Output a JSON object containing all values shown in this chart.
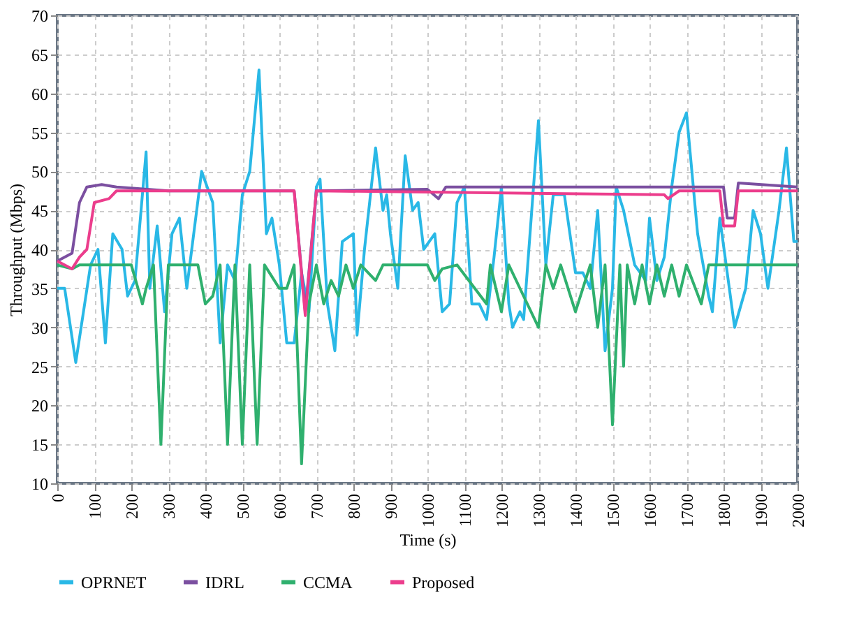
{
  "chart_data": {
    "type": "line",
    "xlabel": "Time (s)",
    "ylabel": "Throughput (Mbps)",
    "xlim": [
      0,
      2000
    ],
    "xticks": [
      0,
      100,
      200,
      300,
      400,
      500,
      600,
      700,
      800,
      900,
      1000,
      1100,
      1200,
      1300,
      1400,
      1500,
      1600,
      1700,
      1800,
      1900,
      2000
    ],
    "ylim": [
      10,
      70
    ],
    "yticks": [
      10,
      15,
      20,
      25,
      30,
      35,
      40,
      45,
      50,
      55,
      60,
      65,
      70
    ],
    "grid": true,
    "legend": "bottom",
    "marker": "none",
    "line_style": "solid",
    "series": [
      {
        "name": "OPRNET",
        "color": "#29b8e6",
        "x": [
          0,
          20,
          50,
          90,
          110,
          130,
          150,
          175,
          190,
          210,
          240,
          250,
          270,
          290,
          310,
          330,
          350,
          390,
          420,
          440,
          460,
          480,
          500,
          520,
          545,
          565,
          580,
          600,
          620,
          640,
          660,
          680,
          700,
          710,
          730,
          750,
          770,
          800,
          810,
          830,
          860,
          880,
          890,
          900,
          920,
          940,
          960,
          975,
          990,
          1020,
          1040,
          1060,
          1080,
          1100,
          1120,
          1140,
          1160,
          1180,
          1200,
          1220,
          1230,
          1250,
          1260,
          1300,
          1320,
          1340,
          1370,
          1400,
          1420,
          1440,
          1460,
          1480,
          1500,
          1510,
          1530,
          1560,
          1590,
          1600,
          1620,
          1640,
          1660,
          1680,
          1700,
          1730,
          1760,
          1770,
          1790,
          1830,
          1860,
          1880,
          1900,
          1920,
          1950,
          1970,
          1990,
          2000
        ],
        "values": [
          35,
          35,
          25.5,
          38,
          40,
          28,
          42,
          40,
          34,
          36,
          52.5,
          35,
          43,
          32,
          42,
          44,
          35,
          50,
          46,
          28,
          38,
          36,
          47,
          50,
          63,
          42,
          44,
          38,
          28,
          28,
          37,
          32,
          48,
          49,
          33,
          27,
          41,
          42,
          29,
          40,
          53,
          45,
          47,
          42,
          35,
          52,
          45,
          46,
          40,
          42,
          32,
          33,
          46,
          48,
          33,
          33,
          31,
          39,
          48,
          33,
          30,
          32,
          31,
          56.5,
          38,
          47,
          47,
          37,
          37,
          35,
          45,
          27,
          35,
          48,
          45,
          38,
          36,
          44,
          36,
          39,
          48,
          55,
          57.5,
          42,
          34,
          32,
          44,
          30,
          35,
          45,
          42,
          35,
          45,
          53,
          41,
          41
        ]
      },
      {
        "name": "IDRL",
        "color": "#7b4fa0",
        "x": [
          0,
          40,
          60,
          80,
          120,
          160,
          300,
          640,
          670,
          700,
          1000,
          1030,
          1050,
          1800,
          1810,
          1830,
          1840,
          2000
        ],
        "values": [
          38.5,
          39.5,
          46,
          48,
          48.3,
          48,
          47.5,
          47.5,
          32,
          47.5,
          47.7,
          46.5,
          48,
          48,
          44,
          44,
          48.5,
          48
        ]
      },
      {
        "name": "CCMA",
        "color": "#2fb06e",
        "x": [
          0,
          40,
          60,
          200,
          230,
          240,
          260,
          280,
          300,
          380,
          400,
          420,
          440,
          460,
          480,
          500,
          520,
          540,
          560,
          600,
          620,
          640,
          660,
          680,
          700,
          720,
          740,
          760,
          780,
          800,
          820,
          860,
          880,
          1000,
          1020,
          1040,
          1080,
          1160,
          1170,
          1200,
          1220,
          1260,
          1300,
          1320,
          1340,
          1360,
          1400,
          1420,
          1440,
          1460,
          1480,
          1500,
          1520,
          1530,
          1540,
          1560,
          1580,
          1600,
          1620,
          1640,
          1660,
          1680,
          1700,
          1740,
          1760,
          1800,
          2000
        ],
        "values": [
          38,
          37.5,
          38,
          38,
          33,
          35,
          38,
          15,
          38,
          38,
          33,
          34,
          38,
          15,
          38,
          15,
          38,
          15,
          38,
          35,
          35,
          38,
          12.5,
          33,
          38,
          33,
          36,
          34,
          38,
          35,
          38,
          36,
          38,
          38,
          36,
          37.5,
          38,
          33,
          38,
          32,
          38,
          34,
          30,
          38,
          35,
          38,
          32,
          35,
          38,
          30,
          38,
          17.5,
          38,
          25,
          38,
          33,
          38,
          33,
          38,
          34,
          38,
          34,
          38,
          33,
          38,
          38,
          38
        ]
      },
      {
        "name": "Proposed",
        "color": "#ec3d8c",
        "x": [
          0,
          40,
          60,
          80,
          100,
          140,
          160,
          640,
          670,
          700,
          1640,
          1650,
          1680,
          1790,
          1800,
          1830,
          1840,
          2000
        ],
        "values": [
          38.5,
          37.5,
          39,
          40,
          46,
          46.5,
          47.5,
          47.5,
          31.5,
          47.5,
          47,
          46.5,
          47.5,
          47.5,
          43,
          43,
          47.5,
          47.5
        ]
      }
    ]
  }
}
